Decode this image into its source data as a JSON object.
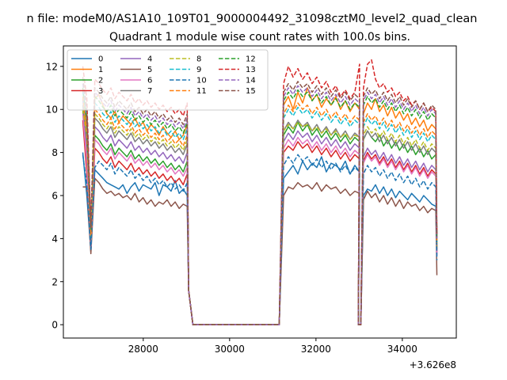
{
  "chart_data": {
    "type": "line",
    "suptitle": "n file: modeM0/AS1A10_109T01_9000004492_31098cztM0_level2_quad_clean",
    "title": "Quadrant 1 module wise count rates with 100.0s bins.",
    "xlabel": "",
    "ylabel": "",
    "x_offset_label": "+3.626e8",
    "xlim": [
      26150,
      35250
    ],
    "ylim": [
      -0.62,
      12.95
    ],
    "x_ticks": [
      28000,
      30000,
      32000,
      34000
    ],
    "x_tick_labels": [
      "28000",
      "30000",
      "32000",
      "34000"
    ],
    "y_ticks": [
      0,
      2,
      4,
      6,
      8,
      10,
      12
    ],
    "y_tick_labels": [
      "0",
      "2",
      "4",
      "6",
      "8",
      "10",
      "12"
    ],
    "legend": {
      "location": "upper-left",
      "ncol": 4
    },
    "series": [
      {
        "name": "0",
        "color": "#1f77b4",
        "dashed": false,
        "seg1": [
          8.0,
          6.0,
          3.4,
          7.2,
          7.0,
          6.8,
          6.6,
          6.5,
          6.4,
          6.3,
          6.5,
          6.1,
          6.4,
          6.6,
          6.2,
          6.5,
          6.4,
          6.3,
          6.6,
          6.0,
          6.5,
          6.4,
          6.2,
          6.7,
          6.1,
          6.3,
          6.0
        ],
        "seg2": [
          6.8,
          7.1,
          7.4,
          7.0,
          7.6,
          7.2,
          7.5,
          7.3,
          7.8,
          7.1,
          7.5,
          7.4,
          7.2,
          7.6,
          7.0,
          7.4,
          7.1
        ],
        "seg3": [
          6.0,
          6.3,
          6.2,
          6.5,
          6.1,
          6.4,
          6.0,
          6.3,
          5.9,
          6.2,
          6.0,
          5.8,
          6.1,
          5.9,
          5.7,
          6.0,
          5.8,
          5.6,
          5.5
        ],
        "end": 3.2
      },
      {
        "name": "1",
        "color": "#ff7f0e",
        "dashed": false,
        "seg1": [
          11.0,
          9.0,
          4.0,
          10.5,
          10.7,
          10.2,
          9.8,
          9.6,
          9.9,
          9.4,
          9.7,
          9.5,
          9.3,
          9.6,
          9.2,
          9.4,
          9.0,
          9.3,
          9.1,
          8.8,
          9.2,
          8.9,
          8.7,
          9.0,
          8.6,
          8.8,
          9.3
        ],
        "seg2": [
          10.2,
          10.6,
          10.0,
          10.8,
          10.3,
          11.0,
          10.4,
          10.7,
          10.1,
          10.5,
          10.2,
          10.6,
          10.0,
          10.4,
          9.9,
          10.3,
          10.0
        ],
        "seg3": [
          9.8,
          10.3,
          10.0,
          10.5,
          9.9,
          10.2,
          9.7,
          10.1,
          9.6,
          9.9,
          9.5,
          9.8,
          9.3,
          9.6,
          9.2,
          9.5,
          9.0,
          9.3,
          9.1
        ],
        "end": 4.0
      },
      {
        "name": "2",
        "color": "#2ca02c",
        "dashed": false,
        "seg1": [
          10.0,
          7.5,
          3.6,
          8.8,
          8.6,
          8.3,
          8.1,
          8.4,
          7.9,
          8.2,
          8.0,
          7.8,
          8.1,
          7.7,
          7.9,
          7.6,
          7.8,
          7.5,
          7.7,
          7.4,
          7.6,
          7.3,
          7.5,
          7.2,
          7.4,
          7.1,
          7.6
        ],
        "seg2": [
          8.8,
          9.2,
          8.9,
          9.4,
          9.0,
          9.3,
          8.8,
          9.1,
          8.7,
          9.0,
          8.6,
          8.9,
          8.5,
          8.8,
          8.4,
          8.7,
          8.5
        ],
        "seg3": [
          8.6,
          9.0,
          8.7,
          8.5,
          8.8,
          8.3,
          8.6,
          8.2,
          8.5,
          8.1,
          8.4,
          8.0,
          8.3,
          7.9,
          8.2,
          7.8,
          8.1,
          7.7,
          7.9
        ],
        "end": 3.5
      },
      {
        "name": "3",
        "color": "#d62728",
        "dashed": false,
        "seg1": [
          9.5,
          7.0,
          3.5,
          8.2,
          8.0,
          7.7,
          7.5,
          7.8,
          7.3,
          7.6,
          7.4,
          7.2,
          7.5,
          7.1,
          7.3,
          7.0,
          7.2,
          6.9,
          7.1,
          6.8,
          7.0,
          6.7,
          6.9,
          6.6,
          6.8,
          6.5,
          7.0
        ],
        "seg2": [
          8.0,
          8.3,
          8.1,
          8.5,
          8.2,
          8.4,
          8.0,
          8.3,
          7.9,
          8.2,
          7.8,
          8.1,
          7.7,
          8.0,
          7.6,
          7.9,
          7.7
        ],
        "seg3": [
          7.6,
          8.0,
          7.7,
          7.9,
          7.5,
          7.8,
          7.4,
          7.7,
          7.3,
          7.6,
          7.2,
          7.5,
          7.1,
          7.4,
          7.0,
          7.3,
          6.9,
          7.2,
          7.0
        ],
        "end": 3.4
      },
      {
        "name": "4",
        "color": "#9467bd",
        "dashed": false,
        "seg1": [
          10.5,
          8.0,
          3.8,
          9.2,
          9.0,
          8.7,
          8.5,
          8.8,
          8.3,
          8.6,
          8.4,
          8.2,
          8.5,
          8.1,
          8.3,
          8.0,
          8.2,
          7.9,
          8.1,
          7.8,
          8.0,
          7.7,
          7.9,
          7.6,
          7.8,
          7.5,
          8.0
        ],
        "seg2": [
          8.5,
          8.9,
          8.6,
          9.0,
          8.7,
          8.9,
          8.5,
          8.8,
          8.4,
          8.7,
          8.3,
          8.6,
          8.2,
          8.5,
          8.1,
          8.4,
          8.2
        ],
        "seg3": [
          7.8,
          8.2,
          7.9,
          8.1,
          7.7,
          8.0,
          7.6,
          7.9,
          7.5,
          7.8,
          7.4,
          7.7,
          7.3,
          7.6,
          7.2,
          7.5,
          7.1,
          7.4,
          7.2
        ],
        "end": 3.3
      },
      {
        "name": "5",
        "color": "#8c564b",
        "dashed": false,
        "seg1": [
          6.4,
          6.4,
          3.3,
          6.8,
          6.6,
          6.3,
          6.1,
          6.2,
          6.0,
          6.1,
          5.9,
          6.0,
          5.8,
          6.1,
          5.7,
          5.9,
          5.6,
          5.8,
          5.5,
          5.7,
          5.6,
          5.8,
          5.5,
          5.7,
          5.4,
          5.6,
          5.5
        ],
        "seg2": [
          6.0,
          6.4,
          6.3,
          6.6,
          6.4,
          6.5,
          6.3,
          6.6,
          6.2,
          6.5,
          6.3,
          6.4,
          6.1,
          6.3,
          6.0,
          6.2,
          6.1
        ],
        "seg3": [
          5.8,
          6.2,
          5.9,
          6.1,
          5.7,
          6.0,
          5.6,
          5.9,
          5.5,
          5.8,
          5.4,
          5.7,
          5.5,
          5.6,
          5.3,
          5.5,
          5.2,
          5.4,
          5.3
        ],
        "end": 2.3
      },
      {
        "name": "6",
        "color": "#e377c2",
        "dashed": false,
        "seg1": [
          9.8,
          7.5,
          3.6,
          8.6,
          8.4,
          8.1,
          7.9,
          8.2,
          7.7,
          8.0,
          7.8,
          7.6,
          7.9,
          7.5,
          7.7,
          7.4,
          7.6,
          7.3,
          7.5,
          7.2,
          7.4,
          7.1,
          7.3,
          7.0,
          7.2,
          6.9,
          7.3
        ],
        "seg2": [
          8.2,
          8.6,
          8.3,
          8.7,
          8.4,
          8.6,
          8.2,
          8.5,
          8.1,
          8.4,
          8.0,
          8.3,
          7.9,
          8.2,
          7.8,
          8.1,
          7.9
        ],
        "seg3": [
          7.5,
          7.9,
          7.6,
          7.8,
          7.4,
          7.7,
          7.3,
          7.6,
          7.2,
          7.5,
          7.1,
          7.4,
          7.0,
          7.3,
          6.9,
          7.2,
          6.8,
          7.1,
          6.9
        ],
        "end": 3.2
      },
      {
        "name": "7",
        "color": "#7f7f7f",
        "dashed": false,
        "seg1": [
          10.2,
          8.5,
          3.9,
          9.6,
          9.4,
          9.1,
          8.9,
          9.2,
          8.7,
          9.0,
          8.8,
          8.6,
          8.9,
          8.5,
          8.7,
          8.4,
          8.6,
          8.3,
          8.5,
          8.2,
          8.4,
          8.1,
          8.3,
          8.0,
          8.2,
          7.9,
          8.4
        ],
        "seg2": [
          9.0,
          9.4,
          9.1,
          9.5,
          9.2,
          9.4,
          9.0,
          9.3,
          8.9,
          9.2,
          8.8,
          9.1,
          8.7,
          9.0,
          8.6,
          8.9,
          8.7
        ],
        "seg3": [
          8.6,
          9.0,
          8.7,
          8.9,
          8.5,
          8.8,
          8.4,
          8.7,
          8.3,
          8.6,
          8.2,
          8.5,
          8.1,
          8.4,
          8.0,
          8.3,
          7.9,
          8.2,
          8.0
        ],
        "end": 3.6
      },
      {
        "name": "8",
        "color": "#bcbd22",
        "dashed": true,
        "seg1": [
          10.0,
          8.8,
          4.1,
          9.8,
          9.6,
          9.3,
          9.1,
          9.4,
          8.9,
          9.2,
          9.0,
          8.8,
          9.1,
          8.7,
          8.9,
          8.6,
          8.8,
          8.5,
          8.7,
          8.4,
          8.6,
          8.3,
          8.5,
          8.2,
          8.4,
          8.1,
          8.6
        ],
        "seg2": [
          9.0,
          9.3,
          9.1,
          9.4,
          9.2,
          9.3,
          9.0,
          9.2,
          8.9,
          9.1,
          8.8,
          9.0,
          8.7,
          8.9,
          8.6,
          8.8,
          8.7
        ],
        "seg3": [
          8.8,
          9.2,
          8.9,
          9.1,
          8.7,
          9.0,
          8.6,
          8.9,
          8.5,
          8.8,
          8.4,
          8.7,
          8.3,
          8.6,
          8.2,
          8.5,
          8.1,
          8.4,
          8.2
        ],
        "end": 3.6
      },
      {
        "name": "9",
        "color": "#17becf",
        "dashed": true,
        "seg1": [
          10.8,
          9.5,
          4.3,
          10.3,
          10.1,
          9.8,
          9.6,
          9.9,
          9.4,
          9.7,
          9.5,
          9.3,
          9.6,
          9.2,
          9.4,
          9.1,
          9.3,
          9.0,
          9.2,
          8.9,
          9.1,
          8.8,
          9.0,
          8.7,
          8.9,
          8.6,
          9.1
        ],
        "seg2": [
          9.6,
          10.0,
          9.7,
          10.1,
          9.8,
          10.0,
          9.6,
          9.9,
          9.5,
          9.8,
          9.4,
          9.7,
          9.3,
          9.6,
          9.2,
          9.5,
          9.3
        ],
        "seg3": [
          9.2,
          9.6,
          9.3,
          9.5,
          9.1,
          9.4,
          9.0,
          9.3,
          8.9,
          9.2,
          8.8,
          9.1,
          8.7,
          9.0,
          8.6,
          8.9,
          8.5,
          8.8,
          8.6
        ],
        "end": 3.8
      },
      {
        "name": "10",
        "color": "#1f77b4",
        "dashed": true,
        "seg1": [
          7.9,
          6.5,
          3.5,
          7.3,
          7.6,
          7.4,
          7.2,
          7.5,
          7.0,
          7.3,
          7.1,
          6.9,
          7.2,
          6.8,
          7.0,
          6.7,
          6.9,
          6.6,
          6.8,
          6.5,
          6.7,
          6.4,
          6.6,
          6.3,
          6.5,
          6.2,
          6.6
        ],
        "seg2": [
          7.4,
          7.8,
          7.5,
          7.9,
          7.6,
          7.8,
          7.4,
          7.7,
          7.3,
          7.6,
          7.2,
          7.5,
          7.1,
          7.4,
          7.0,
          7.3,
          7.1
        ],
        "seg3": [
          7.0,
          7.4,
          7.1,
          7.3,
          6.9,
          7.2,
          6.8,
          7.1,
          6.7,
          7.0,
          6.6,
          6.9,
          6.5,
          6.8,
          6.4,
          6.7,
          6.3,
          6.6,
          6.4
        ],
        "end": 3.0
      },
      {
        "name": "11",
        "color": "#ff7f0e",
        "dashed": true,
        "seg1": [
          10.6,
          9.0,
          4.2,
          10.0,
          9.8,
          9.5,
          9.3,
          9.6,
          9.1,
          9.4,
          9.2,
          9.0,
          9.3,
          8.9,
          9.1,
          8.8,
          9.0,
          8.7,
          8.9,
          8.6,
          8.8,
          8.5,
          8.7,
          8.4,
          8.6,
          8.3,
          8.8
        ],
        "seg2": [
          9.8,
          10.2,
          9.9,
          10.3,
          10.0,
          10.2,
          9.8,
          10.1,
          9.7,
          10.0,
          9.6,
          9.9,
          9.5,
          9.8,
          9.4,
          9.7,
          9.5
        ],
        "seg3": [
          9.4,
          9.8,
          9.5,
          9.7,
          9.3,
          9.6,
          9.2,
          9.5,
          9.1,
          9.4,
          9.0,
          9.3,
          8.9,
          9.2,
          8.8,
          9.1,
          8.7,
          9.0,
          8.8
        ],
        "end": 3.8
      },
      {
        "name": "12",
        "color": "#2ca02c",
        "dashed": true,
        "seg1": [
          11.0,
          9.5,
          4.4,
          10.6,
          10.4,
          10.1,
          9.9,
          10.2,
          9.7,
          10.0,
          9.8,
          9.6,
          9.9,
          9.5,
          9.7,
          9.4,
          9.6,
          9.3,
          9.5,
          9.2,
          9.4,
          9.1,
          9.3,
          9.0,
          9.2,
          8.9,
          9.4
        ],
        "seg2": [
          10.4,
          10.8,
          10.5,
          10.9,
          10.6,
          10.8,
          10.4,
          10.7,
          10.3,
          10.6,
          10.2,
          10.5,
          10.1,
          10.4,
          10.0,
          10.3,
          10.1
        ],
        "seg3": [
          10.2,
          10.6,
          10.3,
          10.5,
          10.1,
          10.4,
          10.0,
          10.3,
          9.9,
          10.2,
          9.8,
          10.1,
          9.7,
          10.0,
          9.6,
          9.9,
          9.5,
          9.8,
          9.6
        ],
        "end": 4.0
      },
      {
        "name": "13",
        "color": "#d62728",
        "dashed": true,
        "seg1": [
          12.0,
          10.5,
          4.6,
          11.4,
          11.2,
          10.9,
          10.7,
          11.0,
          10.5,
          10.8,
          10.6,
          10.4,
          10.7,
          10.3,
          10.5,
          10.2,
          10.4,
          10.1,
          10.3,
          10.0,
          10.2,
          9.9,
          10.1,
          9.8,
          10.0,
          9.7,
          10.3
        ],
        "seg2": [
          11.2,
          12.0,
          11.5,
          11.9,
          11.4,
          11.7,
          11.2,
          11.5,
          11.0,
          11.3,
          10.8,
          11.1,
          10.6,
          10.9,
          10.5,
          10.8,
          12.1
        ],
        "seg3": [
          11.0,
          12.1,
          12.3,
          11.4,
          11.0,
          11.2,
          10.8,
          11.0,
          10.6,
          10.8,
          10.4,
          10.6,
          10.2,
          10.4,
          10.0,
          10.3,
          9.9,
          10.1,
          9.9
        ],
        "end": 4.2
      },
      {
        "name": "14",
        "color": "#9467bd",
        "dashed": true,
        "seg1": [
          11.2,
          9.8,
          4.5,
          10.8,
          10.6,
          10.3,
          10.1,
          10.4,
          9.9,
          10.2,
          10.0,
          9.8,
          10.1,
          9.7,
          9.9,
          9.6,
          9.8,
          9.5,
          9.7,
          9.4,
          9.6,
          9.3,
          9.5,
          9.2,
          9.4,
          9.1,
          9.6
        ],
        "seg2": [
          10.6,
          11.0,
          10.7,
          11.1,
          10.8,
          11.0,
          10.6,
          10.9,
          10.5,
          10.8,
          10.4,
          10.7,
          10.3,
          10.6,
          10.2,
          10.5,
          10.3
        ],
        "seg3": [
          10.4,
          10.8,
          10.5,
          10.7,
          10.3,
          10.6,
          10.2,
          10.5,
          10.1,
          10.4,
          10.0,
          10.3,
          9.9,
          10.2,
          9.8,
          10.1,
          9.7,
          10.0,
          9.8
        ],
        "end": 4.0
      },
      {
        "name": "15",
        "color": "#8c564b",
        "dashed": true,
        "seg1": [
          11.5,
          10.0,
          4.5,
          11.0,
          10.8,
          10.5,
          10.3,
          10.6,
          10.1,
          10.4,
          10.2,
          10.0,
          10.3,
          9.9,
          10.1,
          9.8,
          10.0,
          9.7,
          9.9,
          9.6,
          9.8,
          9.5,
          9.7,
          9.4,
          9.6,
          9.3,
          9.8
        ],
        "seg2": [
          10.8,
          11.2,
          10.9,
          11.3,
          11.0,
          11.2,
          10.8,
          11.1,
          10.7,
          11.0,
          10.6,
          10.9,
          10.5,
          10.8,
          10.4,
          10.7,
          10.5
        ],
        "seg3": [
          10.6,
          11.0,
          10.7,
          10.9,
          10.5,
          10.8,
          10.4,
          10.7,
          10.3,
          10.6,
          10.2,
          10.5,
          10.1,
          10.4,
          10.0,
          10.3,
          9.9,
          10.2,
          10.0
        ],
        "end": 4.1
      }
    ]
  }
}
